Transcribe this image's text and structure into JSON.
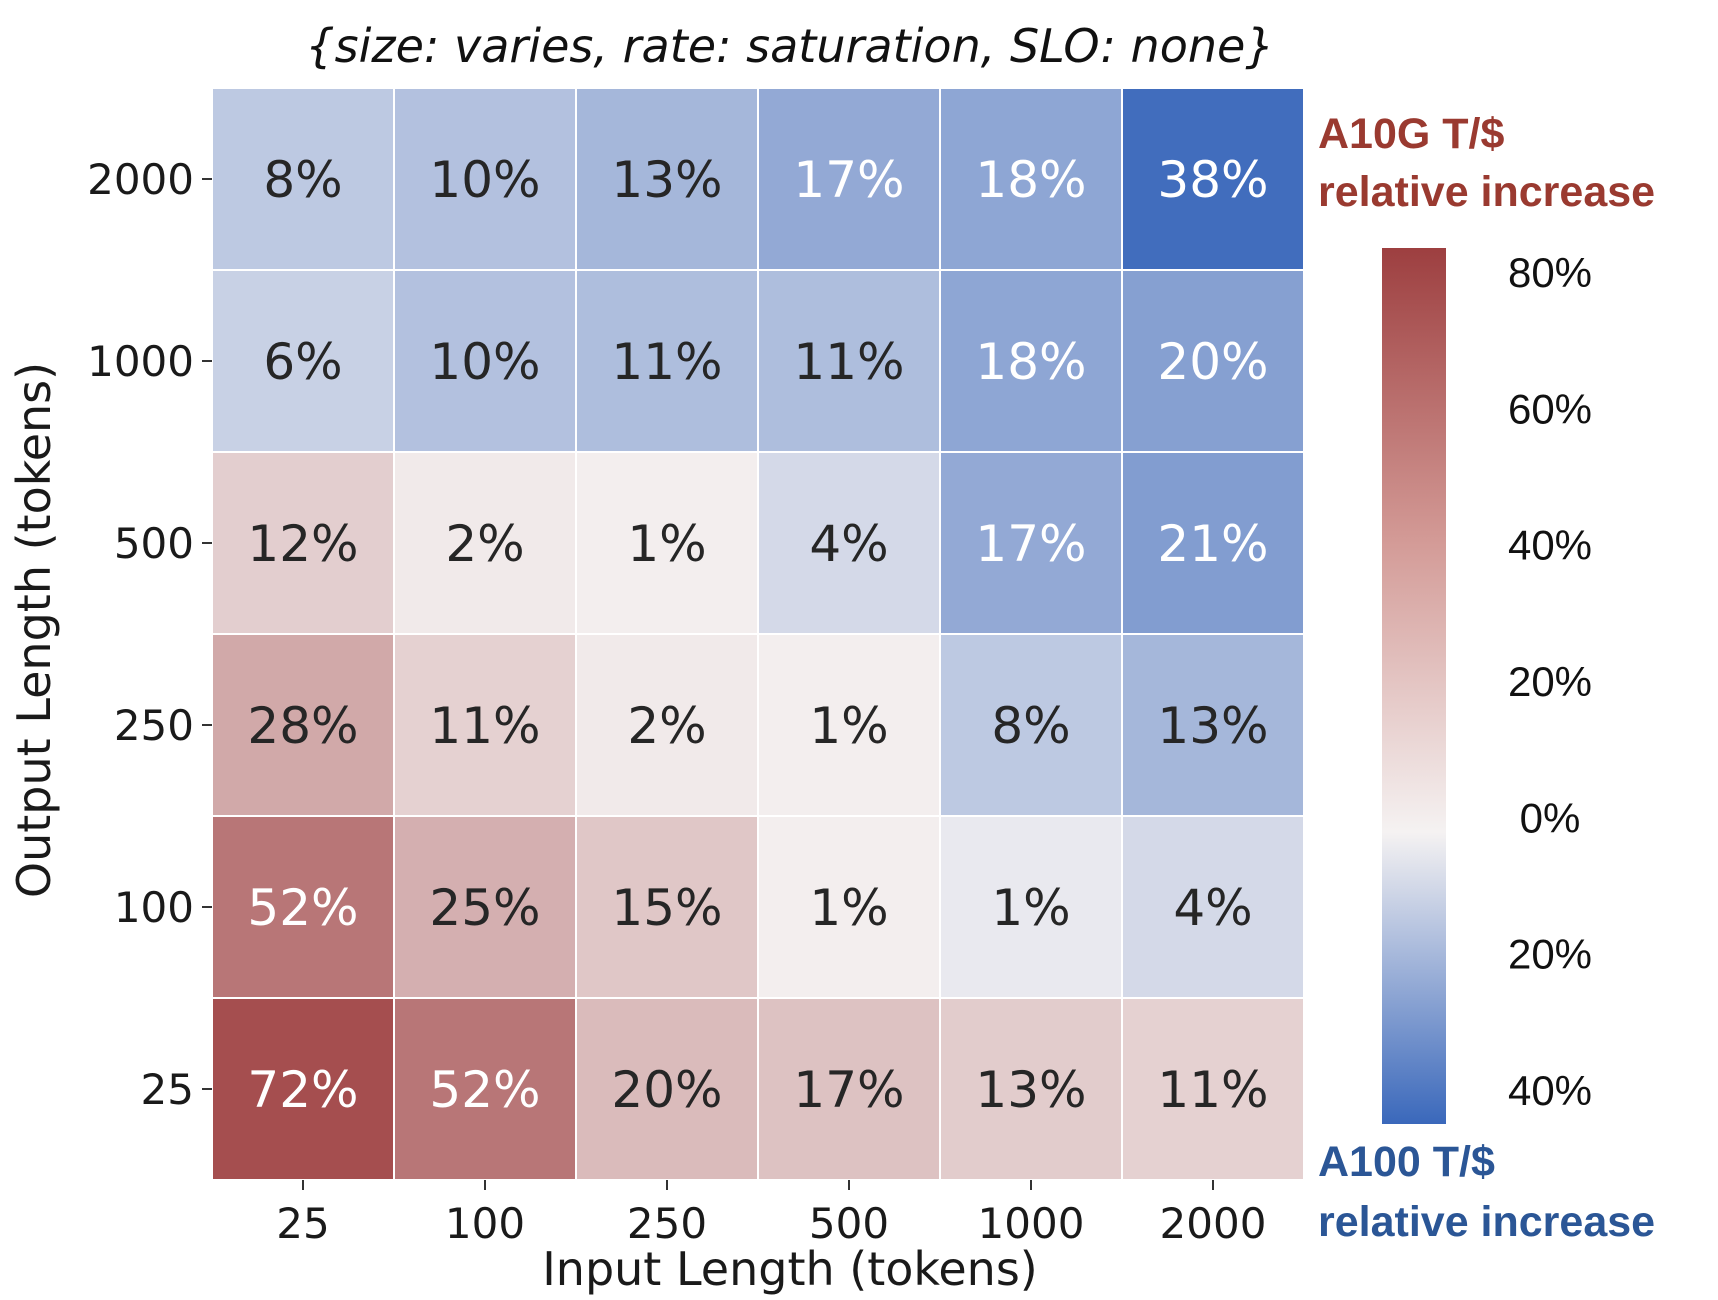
{
  "chart_data": {
    "type": "heatmap",
    "title": "{size: varies, rate: saturation, SLO: none}",
    "xlabel": "Input Length (tokens)",
    "ylabel": "Output Length (tokens)",
    "x_categories": [
      "25",
      "100",
      "250",
      "500",
      "1000",
      "2000"
    ],
    "y_categories": [
      "2000",
      "1000",
      "500",
      "250",
      "100",
      "25"
    ],
    "cells": [
      [
        {
          "value": 8,
          "label": "8%",
          "winner": "A100"
        },
        {
          "value": 10,
          "label": "10%",
          "winner": "A100"
        },
        {
          "value": 13,
          "label": "13%",
          "winner": "A100"
        },
        {
          "value": 17,
          "label": "17%",
          "winner": "A100"
        },
        {
          "value": 18,
          "label": "18%",
          "winner": "A100"
        },
        {
          "value": 38,
          "label": "38%",
          "winner": "A100"
        }
      ],
      [
        {
          "value": 6,
          "label": "6%",
          "winner": "A100"
        },
        {
          "value": 10,
          "label": "10%",
          "winner": "A100"
        },
        {
          "value": 11,
          "label": "11%",
          "winner": "A100"
        },
        {
          "value": 11,
          "label": "11%",
          "winner": "A100"
        },
        {
          "value": 18,
          "label": "18%",
          "winner": "A100"
        },
        {
          "value": 20,
          "label": "20%",
          "winner": "A100"
        }
      ],
      [
        {
          "value": 12,
          "label": "12%",
          "winner": "A10G"
        },
        {
          "value": 2,
          "label": "2%",
          "winner": "A10G"
        },
        {
          "value": 1,
          "label": "1%",
          "winner": "A10G"
        },
        {
          "value": 4,
          "label": "4%",
          "winner": "A100"
        },
        {
          "value": 17,
          "label": "17%",
          "winner": "A100"
        },
        {
          "value": 21,
          "label": "21%",
          "winner": "A100"
        }
      ],
      [
        {
          "value": 28,
          "label": "28%",
          "winner": "A10G"
        },
        {
          "value": 11,
          "label": "11%",
          "winner": "A10G"
        },
        {
          "value": 2,
          "label": "2%",
          "winner": "A10G"
        },
        {
          "value": 1,
          "label": "1%",
          "winner": "A10G"
        },
        {
          "value": 8,
          "label": "8%",
          "winner": "A100"
        },
        {
          "value": 13,
          "label": "13%",
          "winner": "A100"
        }
      ],
      [
        {
          "value": 52,
          "label": "52%",
          "winner": "A10G"
        },
        {
          "value": 25,
          "label": "25%",
          "winner": "A10G"
        },
        {
          "value": 15,
          "label": "15%",
          "winner": "A10G"
        },
        {
          "value": 1,
          "label": "1%",
          "winner": "A10G"
        },
        {
          "value": 1,
          "label": "1%",
          "winner": "A100"
        },
        {
          "value": 4,
          "label": "4%",
          "winner": "A100"
        }
      ],
      [
        {
          "value": 72,
          "label": "72%",
          "winner": "A10G"
        },
        {
          "value": 52,
          "label": "52%",
          "winner": "A10G"
        },
        {
          "value": 20,
          "label": "20%",
          "winner": "A10G"
        },
        {
          "value": 17,
          "label": "17%",
          "winner": "A10G"
        },
        {
          "value": 13,
          "label": "13%",
          "winner": "A10G"
        },
        {
          "value": 11,
          "label": "11%",
          "winner": "A10G"
        }
      ]
    ],
    "colorbar": {
      "range": [
        -40,
        80
      ],
      "ticks": [
        80,
        60,
        40,
        20,
        0,
        -20,
        -40
      ],
      "tick_labels": [
        "80%",
        "60%",
        "40%",
        "20%",
        "0%",
        "20%",
        "40%"
      ],
      "top_label_line1": "A10G T/$",
      "top_label_line2": "relative increase",
      "bottom_label_line1": "A100 T/$",
      "bottom_label_line2": "relative increase",
      "top_color": "#9a3a30",
      "bottom_color": "#2b5696"
    },
    "colors": {
      "red_end": "#9d3f40",
      "blue_end": "#3a68bb",
      "neutral": "#f5f2f2"
    }
  }
}
